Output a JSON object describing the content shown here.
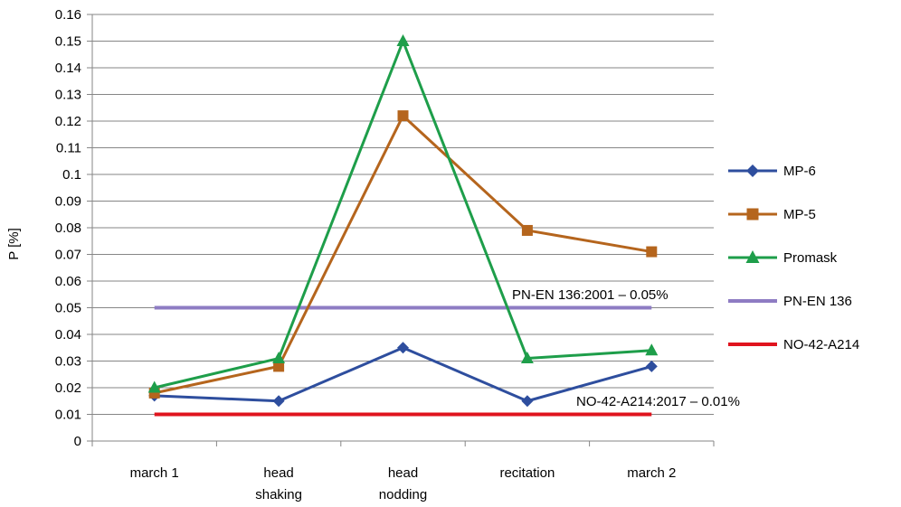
{
  "chart_data": {
    "type": "line",
    "title": "",
    "xlabel": "",
    "ylabel": "P [%]",
    "categories": [
      [
        "march 1"
      ],
      [
        "head",
        "shaking"
      ],
      [
        "head",
        "nodding"
      ],
      [
        "recitation"
      ],
      [
        "march 2"
      ]
    ],
    "ylim": [
      0,
      0.16
    ],
    "yticks": [
      "0",
      "0.01",
      "0.02",
      "0.03",
      "0.04",
      "0.05",
      "0.06",
      "0.07",
      "0.08",
      "0.09",
      "0.1",
      "0.11",
      "0.12",
      "0.13",
      "0.14",
      "0.15",
      "0.16"
    ],
    "grid": "horizontal",
    "legend_position": "right",
    "series": [
      {
        "name": "MP-6",
        "color": "#2E4E9E",
        "marker": "diamond",
        "values": [
          0.017,
          0.015,
          0.035,
          0.015,
          0.028
        ]
      },
      {
        "name": "MP-5",
        "color": "#B5651D",
        "marker": "square",
        "values": [
          0.018,
          0.028,
          0.122,
          0.079,
          0.071
        ]
      },
      {
        "name": "Promask",
        "color": "#1E9E4A",
        "marker": "triangle",
        "values": [
          0.02,
          0.031,
          0.15,
          0.031,
          0.034
        ]
      },
      {
        "name": "PN-EN 136",
        "color": "#8E7CC3",
        "marker": "none",
        "values": [
          0.05,
          0.05,
          0.05,
          0.05,
          0.05
        ]
      },
      {
        "name": "NO-42-A214",
        "color": "#E0141E",
        "marker": "none",
        "values": [
          0.01,
          0.01,
          0.01,
          0.01,
          0.01
        ]
      }
    ],
    "annotations": [
      {
        "text": "PN-EN 136:2001 – 0.05%"
      },
      {
        "text": "NO-42-A214:2017 – 0.01%"
      }
    ]
  }
}
